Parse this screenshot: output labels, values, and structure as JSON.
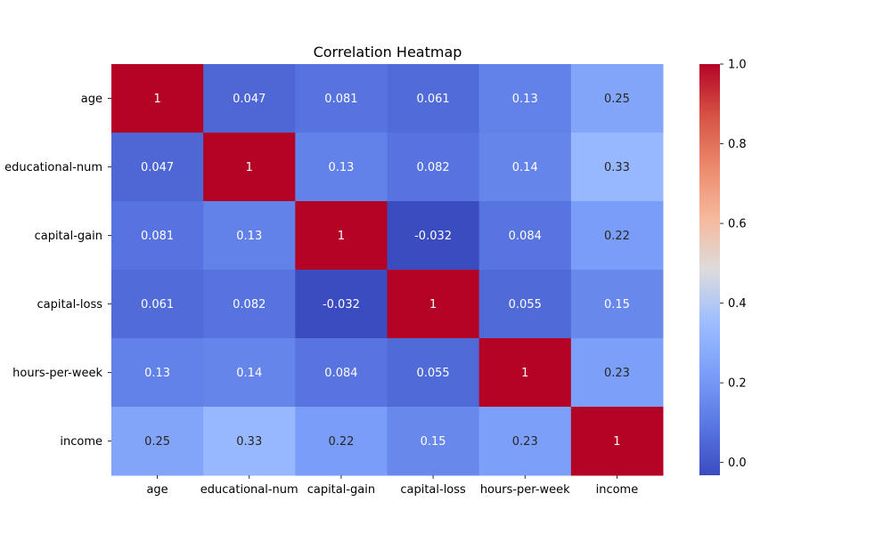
{
  "chart_data": {
    "type": "heatmap",
    "title": "Correlation Heatmap",
    "xlabel": "",
    "ylabel": "",
    "rows": [
      "age",
      "educational-num",
      "capital-gain",
      "capital-loss",
      "hours-per-week",
      "income"
    ],
    "columns": [
      "age",
      "educational-num",
      "capital-gain",
      "capital-loss",
      "hours-per-week",
      "income"
    ],
    "values": [
      [
        1,
        0.047,
        0.081,
        0.061,
        0.13,
        0.25
      ],
      [
        0.047,
        1,
        0.13,
        0.082,
        0.14,
        0.33
      ],
      [
        0.081,
        0.13,
        1,
        -0.032,
        0.084,
        0.22
      ],
      [
        0.061,
        0.082,
        -0.032,
        1,
        0.055,
        0.15
      ],
      [
        0.13,
        0.14,
        0.084,
        0.055,
        1,
        0.23
      ],
      [
        0.25,
        0.33,
        0.22,
        0.15,
        0.23,
        1
      ]
    ],
    "labels": [
      [
        "1",
        "0.047",
        "0.081",
        "0.061",
        "0.13",
        "0.25"
      ],
      [
        "0.047",
        "1",
        "0.13",
        "0.082",
        "0.14",
        "0.33"
      ],
      [
        "0.081",
        "0.13",
        "1",
        "-0.032",
        "0.084",
        "0.22"
      ],
      [
        "0.061",
        "0.082",
        "-0.032",
        "1",
        "0.055",
        "0.15"
      ],
      [
        "0.13",
        "0.14",
        "0.084",
        "0.055",
        "1",
        "0.23"
      ],
      [
        "0.25",
        "0.33",
        "0.22",
        "0.15",
        "0.23",
        "1"
      ]
    ],
    "colormap": "coolwarm",
    "vmin": -0.032,
    "vmax": 1.0,
    "colorbar": {
      "ticks": [
        0.0,
        0.2,
        0.4,
        0.6,
        0.8,
        1.0
      ],
      "tick_labels": [
        "0.0",
        "0.2",
        "0.4",
        "0.6",
        "0.8",
        "1.0"
      ]
    }
  }
}
